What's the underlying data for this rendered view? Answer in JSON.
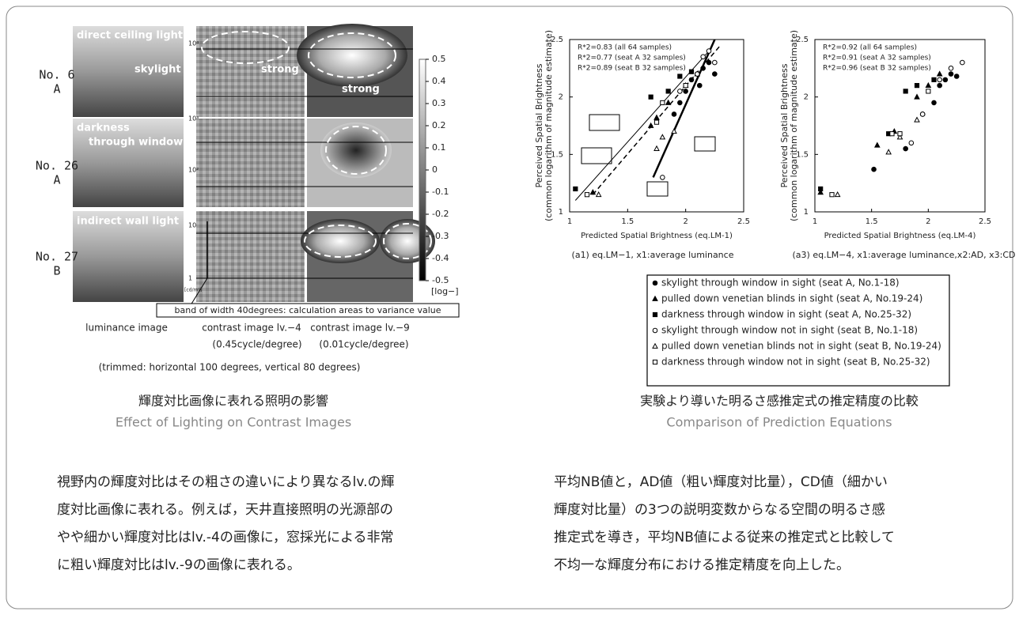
{
  "left": {
    "row_labels": [
      {
        "no": "No. 6",
        "seat": "A"
      },
      {
        "no": "No. 26",
        "seat": "A"
      },
      {
        "no": "No. 27",
        "seat": "B"
      }
    ],
    "image_labels": [
      "direct ceiling light",
      "skylight",
      "darkness",
      "through window",
      "indirect wall light"
    ],
    "strong_labels": [
      "strong",
      "strong"
    ],
    "luminance_ticks": [
      "10⁴",
      "10³",
      "10²",
      "10",
      "1"
    ],
    "luminance_unit": "[cd/m²]",
    "scale": {
      "lim": [
        -0.5,
        0.5
      ],
      "ticks": [
        0.5,
        0.4,
        0.3,
        0.2,
        0.1,
        0,
        -0.1,
        -0.2,
        -0.3,
        -0.4,
        -0.5
      ],
      "unit": "[log−]"
    },
    "band_note": "band of width 40degrees: calculation areas to variance value",
    "column_labels": [
      "luminance image",
      "contrast image lv.−4",
      "contrast image lv.−9"
    ],
    "column_sublabels": [
      "(0.45cycle/degree)",
      "(0.01cycle/degree)"
    ],
    "trim_note": "(trimmed: horizontal 100 degrees, vertical 80 degrees)",
    "caption_ja": "輝度対比画像に表れる照明の影響",
    "caption_en": "Effect of Lighting on Contrast Images",
    "body": [
      "視野内の輝度対比はその粗さの違いにより異なるlv.の輝",
      "度対比画像に表れる。例えば，天井直接照明の光源部の",
      "やや細かい輝度対比はlv.-4の画像に，窓採光による非常",
      "に粗い輝度対比はlv.-9の画像に表れる。"
    ]
  },
  "chart_data": [
    {
      "type": "scatter",
      "caption": "(a1) eq.LM−1, x1:average luminance",
      "x_label": "Predicted Spatial Brightness (eq.LM-1)",
      "y_label": [
        "Perceived Spatial Brightness",
        "(common logarithm of magnitude estimate)"
      ],
      "annotations": [
        "R*2=0.83 (all 64 samples)",
        "R*2=0.77 (seat A 32 samples)",
        "R*2=0.89 (seat B 32 samples)"
      ],
      "xlim": [
        1,
        2.5
      ],
      "ylim": [
        1,
        2.5
      ],
      "xticks": [
        1,
        1.5,
        2,
        2.5
      ],
      "yticks": [
        1,
        1.5,
        2,
        2.5
      ],
      "series": [
        {
          "marker": "circle",
          "filled": true,
          "x": [
            1.9,
            1.95,
            2.0,
            2.05,
            2.1,
            2.12,
            2.15,
            2.2,
            2.25
          ],
          "values": [
            1.85,
            1.95,
            2.05,
            2.15,
            2.2,
            2.1,
            2.25,
            2.3,
            2.2
          ]
        },
        {
          "marker": "triangle",
          "filled": true,
          "x": [
            1.2,
            1.7,
            1.75,
            1.85,
            2.0,
            2.1
          ],
          "values": [
            1.17,
            1.75,
            1.82,
            1.95,
            2.1,
            2.2
          ]
        },
        {
          "marker": "square",
          "filled": true,
          "x": [
            1.05,
            1.7,
            1.85,
            1.95,
            2.05
          ],
          "values": [
            1.2,
            2.0,
            2.05,
            2.18,
            2.22
          ]
        },
        {
          "marker": "circle",
          "filled": false,
          "x": [
            1.8,
            1.95,
            2.1,
            2.15,
            2.2,
            2.25
          ],
          "values": [
            1.3,
            2.05,
            2.2,
            2.35,
            2.4,
            2.3
          ]
        },
        {
          "marker": "triangle",
          "filled": false,
          "x": [
            1.25,
            1.75,
            1.8,
            1.9
          ],
          "values": [
            1.15,
            1.55,
            1.65,
            1.7
          ]
        },
        {
          "marker": "square",
          "filled": false,
          "x": [
            1.15,
            1.75,
            1.8,
            2.0
          ],
          "values": [
            1.15,
            1.78,
            1.95,
            2.1
          ]
        }
      ]
    },
    {
      "type": "scatter",
      "caption": "(a3) eq.LM−4, x1:average luminance,x2:AD, x3:CD",
      "x_label": "Predicted Spatial Brightness (eq.LM-4)",
      "y_label": [
        "Perceived Spatial Brightness",
        "(common logarithm of magnitude estimate)"
      ],
      "annotations": [
        "R*2=0.92  (all 64 samples)",
        "R*2=0.91  (seat A 32 samples)",
        "R*2=0.96  (seat B 32 samples)"
      ],
      "xlim": [
        1,
        2.5
      ],
      "ylim": [
        1,
        2.5
      ],
      "xticks": [
        1,
        1.5,
        2,
        2.5
      ],
      "yticks": [
        1,
        1.5,
        2,
        2.5
      ],
      "series": [
        {
          "marker": "circle",
          "filled": true,
          "x": [
            1.52,
            1.8,
            1.95,
            2.05,
            2.1,
            2.15,
            2.2,
            2.25
          ],
          "values": [
            1.37,
            1.55,
            1.85,
            1.95,
            2.1,
            2.15,
            2.2,
            2.18
          ]
        },
        {
          "marker": "triangle",
          "filled": true,
          "x": [
            1.05,
            1.55,
            1.7,
            1.9,
            2.0,
            2.1
          ],
          "values": [
            1.17,
            1.58,
            1.7,
            2.0,
            2.1,
            2.2
          ]
        },
        {
          "marker": "square",
          "filled": true,
          "x": [
            1.05,
            1.65,
            1.8,
            1.9,
            2.05
          ],
          "values": [
            1.2,
            1.68,
            2.05,
            2.1,
            2.15
          ]
        },
        {
          "marker": "circle",
          "filled": false,
          "x": [
            1.85,
            1.95,
            2.1,
            2.2,
            2.3
          ],
          "values": [
            1.6,
            1.85,
            2.15,
            2.25,
            2.3
          ]
        },
        {
          "marker": "triangle",
          "filled": false,
          "x": [
            1.2,
            1.65,
            1.75,
            1.9
          ],
          "values": [
            1.15,
            1.52,
            1.65,
            1.8
          ]
        },
        {
          "marker": "square",
          "filled": false,
          "x": [
            1.15,
            1.68,
            1.75,
            2.0
          ],
          "values": [
            1.15,
            1.68,
            1.68,
            2.05
          ]
        }
      ]
    }
  ],
  "right": {
    "legend": [
      "skylight through window in sight (seat A, No.1-18)",
      "pulled down venetian blinds in sight (seat A, No.19-24)",
      "darkness through window in sight (seat A, No.25-32)",
      "skylight through window not in sight (seat B, No.1-18)",
      "pulled down venetian blinds not in sight (seat B, No.19-24)",
      "darkness through window not in sight (seat B, No.25-32)"
    ],
    "caption_ja": "実験より導いた明るさ感推定式の推定精度の比較",
    "caption_en": "Comparison of Prediction Equations",
    "body": [
      "平均NB値と，AD値（粗い輝度対比量），CD値（細かい",
      "輝度対比量）の3つの説明変数からなる空間の明るさ感",
      "推定式を導き，平均NB値による従来の推定式と比較して",
      "不均一な輝度分布における推定精度を向上した。"
    ]
  }
}
